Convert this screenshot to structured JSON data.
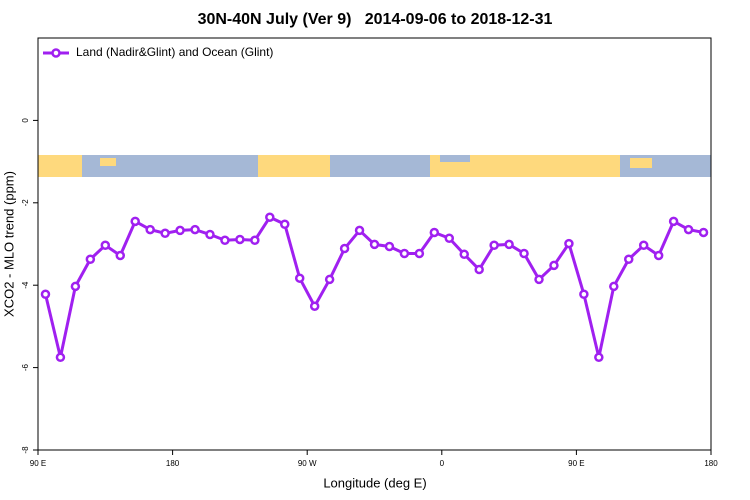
{
  "chart_data": {
    "type": "line",
    "title": "30N-40N July (Ver 9)   2014-09-06 to 2018-12-31",
    "x_label": "Longitude (deg E)",
    "y_label": "XCO2 - MLO trend (ppm)",
    "xlim": [
      90,
      540
    ],
    "xticks": [
      {
        "value": 90,
        "label": "90 E"
      },
      {
        "value": 180,
        "label": "180"
      },
      {
        "value": 270,
        "label": "90 W"
      },
      {
        "value": 360,
        "label": "0"
      },
      {
        "value": 450,
        "label": "90 E"
      },
      {
        "value": 540,
        "label": "180"
      }
    ],
    "ylim": [
      -8,
      2
    ],
    "yticks": [
      -8,
      -6,
      -4,
      -2,
      0
    ],
    "legend": "top-left",
    "x": [
      95,
      105,
      115,
      125,
      135,
      145,
      155,
      165,
      175,
      185,
      195,
      205,
      215,
      225,
      235,
      245,
      255,
      265,
      275,
      285,
      295,
      305,
      315,
      325,
      335,
      345,
      355,
      365,
      375,
      385,
      395,
      405,
      415,
      425,
      435,
      445,
      455,
      465,
      475,
      485,
      495,
      505,
      515,
      525,
      535
    ],
    "series": [
      {
        "name": "Land (Nadir&Glint) and Ocean (Glint)",
        "color": "#a020f0",
        "values": [
          -4.22,
          -5.75,
          -4.03,
          -3.37,
          -3.03,
          -3.28,
          -2.45,
          -2.65,
          -2.74,
          -2.67,
          -2.65,
          -2.77,
          -2.91,
          -2.89,
          -2.91,
          -2.35,
          -2.52,
          -3.83,
          -4.51,
          -3.86,
          -3.11,
          -2.67,
          -3.01,
          -3.06,
          -3.23,
          -3.23,
          -2.72,
          -2.86,
          -3.25,
          -3.62,
          -3.03,
          -3.01,
          -3.23,
          -3.86,
          -3.52,
          -2.99,
          -4.22,
          -5.75,
          -4.03,
          -3.37,
          -3.03,
          -3.28,
          -2.45,
          -2.65,
          -2.72
        ]
      }
    ]
  }
}
